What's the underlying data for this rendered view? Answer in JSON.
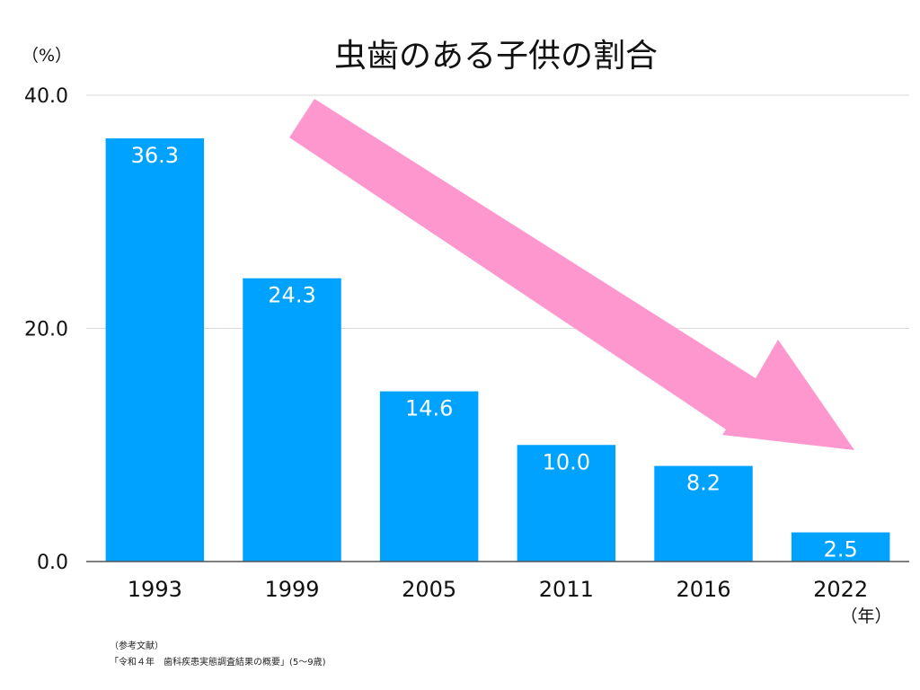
{
  "chart_data": {
    "type": "bar",
    "title": "虫歯のある子供の割合",
    "ylabel": "（%）",
    "xlabel": "（年）",
    "categories": [
      "1993",
      "1999",
      "2005",
      "2011",
      "2016",
      "2022"
    ],
    "values": [
      36.3,
      24.3,
      14.6,
      10.0,
      8.2,
      2.5
    ],
    "data_labels": [
      "36.3",
      "24.3",
      "14.6",
      "10.0",
      "8.2",
      "2.5"
    ],
    "ylim": [
      0,
      40
    ],
    "yticks": [
      0,
      20,
      40
    ],
    "ytick_labels": [
      "0.0",
      "20.0",
      "40.0"
    ],
    "grid": true,
    "legend": "none"
  },
  "source": {
    "line1": "（参考文献）",
    "line2": "「令和４年　歯科疾患実態調査結果の概要」(5〜9歳)"
  },
  "colors": {
    "bar": "#00a2ff",
    "arrow": "#ff97cf",
    "grid": "#d9d9d9",
    "axis": "#555555",
    "text": "#111111",
    "bar_label": "#ffffff"
  }
}
